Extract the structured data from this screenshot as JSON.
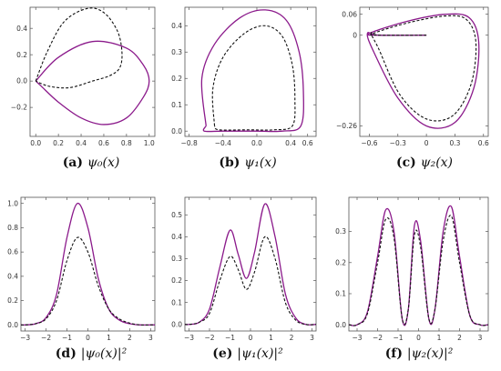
{
  "colors": {
    "magenta": "#8b1a8b",
    "dashed": "#111111",
    "frame": "#555555"
  },
  "chart_data": [
    {
      "type": "line",
      "label": "(a)",
      "caption": "ψ₀(x)",
      "xlim": [
        -0.05,
        1.05
      ],
      "ylim": [
        -0.42,
        0.56
      ],
      "xticks": [
        0.0,
        0.2,
        0.4,
        0.6,
        0.8,
        1.0
      ],
      "xtick_labels": [
        "0.0",
        "0.2",
        "0.4",
        "0.6",
        "0.8",
        "1.0"
      ],
      "yticks": [
        -0.2,
        0.0,
        0.2,
        0.4
      ],
      "ytick_labels": [
        "−0.2",
        "0.0",
        "0.2",
        "0.4"
      ],
      "series": [
        {
          "style": "solid",
          "color": "#8b1a8b",
          "x": [
            0.0,
            0.2,
            0.5,
            0.8,
            0.95,
            1.0,
            0.95,
            0.8,
            0.6,
            0.4,
            0.2,
            0.05,
            0.0
          ],
          "y": [
            0.0,
            0.18,
            0.3,
            0.25,
            0.12,
            0.0,
            -0.12,
            -0.28,
            -0.33,
            -0.28,
            -0.16,
            -0.04,
            0.0
          ]
        },
        {
          "style": "dashed",
          "color": "#111111",
          "x": [
            0.0,
            0.1,
            0.25,
            0.45,
            0.6,
            0.72,
            0.76,
            0.74,
            0.65,
            0.5,
            0.3,
            0.12,
            0.0
          ],
          "y": [
            0.0,
            0.22,
            0.45,
            0.55,
            0.52,
            0.38,
            0.22,
            0.1,
            0.04,
            0.0,
            -0.05,
            -0.04,
            0.0
          ]
        }
      ]
    },
    {
      "type": "line",
      "label": "(b)",
      "caption": "ψ₁(x)",
      "xlim": [
        -0.85,
        0.7
      ],
      "ylim": [
        -0.02,
        0.47
      ],
      "xticks": [
        -0.8,
        -0.4,
        0.0,
        0.4,
        0.6
      ],
      "xtick_labels": [
        "−0.8",
        "−0.4",
        "0.0",
        "0.4",
        "0.6"
      ],
      "yticks": [
        0.0,
        0.1,
        0.2,
        0.3,
        0.4
      ],
      "ytick_labels": [
        "0.0",
        "0.1",
        "0.2",
        "0.3",
        "0.4"
      ],
      "series": [
        {
          "style": "solid",
          "color": "#8b1a8b",
          "x": [
            -0.6,
            -0.65,
            -0.5,
            -0.2,
            0.1,
            0.35,
            0.5,
            0.55,
            0.52,
            0.3,
            0.0,
            -0.4,
            -0.62,
            -0.6
          ],
          "y": [
            0.02,
            0.2,
            0.33,
            0.43,
            0.46,
            0.42,
            0.3,
            0.15,
            0.02,
            -0.0,
            -0.0,
            0.0,
            0.0,
            0.02
          ]
        },
        {
          "style": "dashed",
          "color": "#111111",
          "x": [
            -0.5,
            -0.52,
            -0.4,
            -0.15,
            0.1,
            0.3,
            0.42,
            0.45,
            0.42,
            0.2,
            -0.1,
            -0.45,
            -0.5
          ],
          "y": [
            0.02,
            0.16,
            0.28,
            0.37,
            0.4,
            0.36,
            0.25,
            0.12,
            0.02,
            0.005,
            0.005,
            0.005,
            0.02
          ]
        }
      ]
    },
    {
      "type": "line",
      "label": "(c)",
      "caption": "ψ₂(x)",
      "xlim": [
        -0.7,
        0.65
      ],
      "ylim": [
        -0.29,
        0.08
      ],
      "xticks": [
        -0.6,
        -0.3,
        0.0,
        0.3,
        0.6
      ],
      "xtick_labels": [
        "−0.6",
        "−0.3",
        "0",
        "0.3",
        "0.6"
      ],
      "yticks": [
        0.06,
        0.0,
        -0.26
      ],
      "ytick_labels": [
        "0.06",
        "0",
        "−0.26"
      ],
      "series": [
        {
          "style": "solid",
          "color": "#8b1a8b",
          "x": [
            0.0,
            -0.5,
            -0.62,
            -0.55,
            -0.3,
            0.0,
            0.3,
            0.5,
            0.55,
            0.45,
            0.2,
            -0.2,
            -0.6,
            -0.5,
            0.0
          ],
          "y": [
            0.0,
            0.0,
            0.005,
            -0.05,
            -0.18,
            -0.26,
            -0.25,
            -0.15,
            -0.02,
            0.05,
            0.06,
            0.04,
            0.005,
            0.0,
            0.0
          ]
        },
        {
          "style": "dashed",
          "color": "#111111",
          "x": [
            0.0,
            -0.5,
            -0.58,
            -0.5,
            -0.28,
            0.0,
            0.28,
            0.47,
            0.52,
            0.42,
            0.2,
            -0.2,
            -0.56,
            -0.5,
            0.0
          ],
          "y": [
            0.0,
            0.0,
            0.005,
            -0.04,
            -0.17,
            -0.24,
            -0.23,
            -0.14,
            -0.02,
            0.045,
            0.055,
            0.035,
            0.005,
            0.0,
            0.0
          ]
        }
      ]
    },
    {
      "type": "line",
      "label": "(d)",
      "caption": "|ψ₀(x)|²",
      "xlim": [
        -3.2,
        3.2
      ],
      "ylim": [
        -0.05,
        1.05
      ],
      "xticks": [
        -3,
        -2,
        -1,
        0,
        1,
        2,
        3
      ],
      "xtick_labels": [
        "−3",
        "−2",
        "−1",
        "0",
        "1",
        "2",
        "3"
      ],
      "yticks": [
        0.0,
        0.2,
        0.4,
        0.6,
        0.8,
        1.0
      ],
      "ytick_labels": [
        "0.0",
        "0.2",
        "0.4",
        "0.6",
        "0.8",
        "1.0"
      ],
      "series": [
        {
          "style": "solid",
          "color": "#8b1a8b",
          "x": [
            -3.2,
            -3.0,
            -2.5,
            -2.0,
            -1.5,
            -1.0,
            -0.5,
            0.0,
            0.5,
            1.0,
            1.5,
            2.0,
            2.5,
            3.0,
            3.2
          ],
          "y": [
            0.0,
            0.0,
            0.01,
            0.06,
            0.25,
            0.72,
            1.0,
            0.8,
            0.38,
            0.13,
            0.04,
            0.01,
            0.0,
            0.0,
            0.0
          ]
        },
        {
          "style": "dashed",
          "color": "#111111",
          "x": [
            -3.2,
            -3.0,
            -2.5,
            -2.0,
            -1.5,
            -1.0,
            -0.5,
            0.0,
            0.5,
            1.0,
            1.5,
            2.0,
            2.5,
            3.0,
            3.2
          ],
          "y": [
            0.0,
            0.0,
            0.01,
            0.05,
            0.2,
            0.53,
            0.72,
            0.6,
            0.32,
            0.13,
            0.05,
            0.015,
            0.0,
            0.0,
            0.0
          ]
        }
      ]
    },
    {
      "type": "line",
      "label": "(e)",
      "caption": "|ψ₁(x)|²",
      "xlim": [
        -3.2,
        3.2
      ],
      "ylim": [
        -0.03,
        0.58
      ],
      "xticks": [
        -3,
        -2,
        -1,
        0,
        1,
        2,
        3
      ],
      "xtick_labels": [
        "−3",
        "−2",
        "−1",
        "0",
        "1",
        "2",
        "3"
      ],
      "yticks": [
        0.0,
        0.1,
        0.2,
        0.3,
        0.4,
        0.5
      ],
      "ytick_labels": [
        "0.0",
        "0.1",
        "0.2",
        "0.3",
        "0.4",
        "0.5"
      ],
      "series": [
        {
          "style": "solid",
          "color": "#8b1a8b",
          "x": [
            -3.2,
            -3.0,
            -2.5,
            -2.0,
            -1.5,
            -1.0,
            -0.6,
            -0.2,
            0.2,
            0.7,
            1.2,
            1.7,
            2.2,
            2.7,
            3.2
          ],
          "y": [
            0.0,
            0.0,
            0.01,
            0.07,
            0.26,
            0.43,
            0.32,
            0.21,
            0.33,
            0.55,
            0.4,
            0.14,
            0.03,
            0.0,
            0.0
          ]
        },
        {
          "style": "dashed",
          "color": "#111111",
          "x": [
            -3.2,
            -3.0,
            -2.5,
            -2.0,
            -1.5,
            -1.0,
            -0.6,
            -0.2,
            0.2,
            0.7,
            1.2,
            1.7,
            2.2,
            2.7,
            3.2
          ],
          "y": [
            0.0,
            0.0,
            0.01,
            0.05,
            0.2,
            0.31,
            0.25,
            0.16,
            0.24,
            0.4,
            0.3,
            0.1,
            0.02,
            0.0,
            0.0
          ]
        }
      ]
    },
    {
      "type": "line",
      "label": "(f)",
      "caption": "|ψ₂(x)|²",
      "xlim": [
        -3.4,
        3.4
      ],
      "ylim": [
        -0.02,
        0.41
      ],
      "xticks": [
        -3,
        -2,
        -1,
        0,
        1,
        2,
        3
      ],
      "xtick_labels": [
        "−3",
        "−2",
        "−1",
        "0",
        "1",
        "2",
        "3"
      ],
      "yticks": [
        0.0,
        0.1,
        0.2,
        0.3
      ],
      "ytick_labels": [
        "0.0",
        "0.1",
        "0.2",
        "0.3"
      ],
      "series": [
        {
          "style": "solid",
          "color": "#8b1a8b",
          "x": [
            -3.4,
            -3.0,
            -2.5,
            -2.0,
            -1.6,
            -1.2,
            -0.8,
            -0.5,
            -0.2,
            0.1,
            0.5,
            0.8,
            1.2,
            1.6,
            2.0,
            2.5,
            3.0,
            3.4
          ],
          "y": [
            0.0,
            0.0,
            0.04,
            0.22,
            0.37,
            0.3,
            0.02,
            0.05,
            0.32,
            0.27,
            0.02,
            0.05,
            0.3,
            0.38,
            0.22,
            0.03,
            0.0,
            0.0
          ]
        },
        {
          "style": "dashed",
          "color": "#111111",
          "x": [
            -3.4,
            -3.0,
            -2.5,
            -2.0,
            -1.6,
            -1.2,
            -0.8,
            -0.5,
            -0.2,
            0.1,
            0.5,
            0.8,
            1.2,
            1.6,
            2.0,
            2.5,
            3.0,
            3.4
          ],
          "y": [
            0.0,
            0.0,
            0.035,
            0.2,
            0.34,
            0.28,
            0.02,
            0.05,
            0.29,
            0.25,
            0.02,
            0.05,
            0.27,
            0.35,
            0.2,
            0.03,
            0.0,
            0.0
          ]
        }
      ]
    }
  ]
}
